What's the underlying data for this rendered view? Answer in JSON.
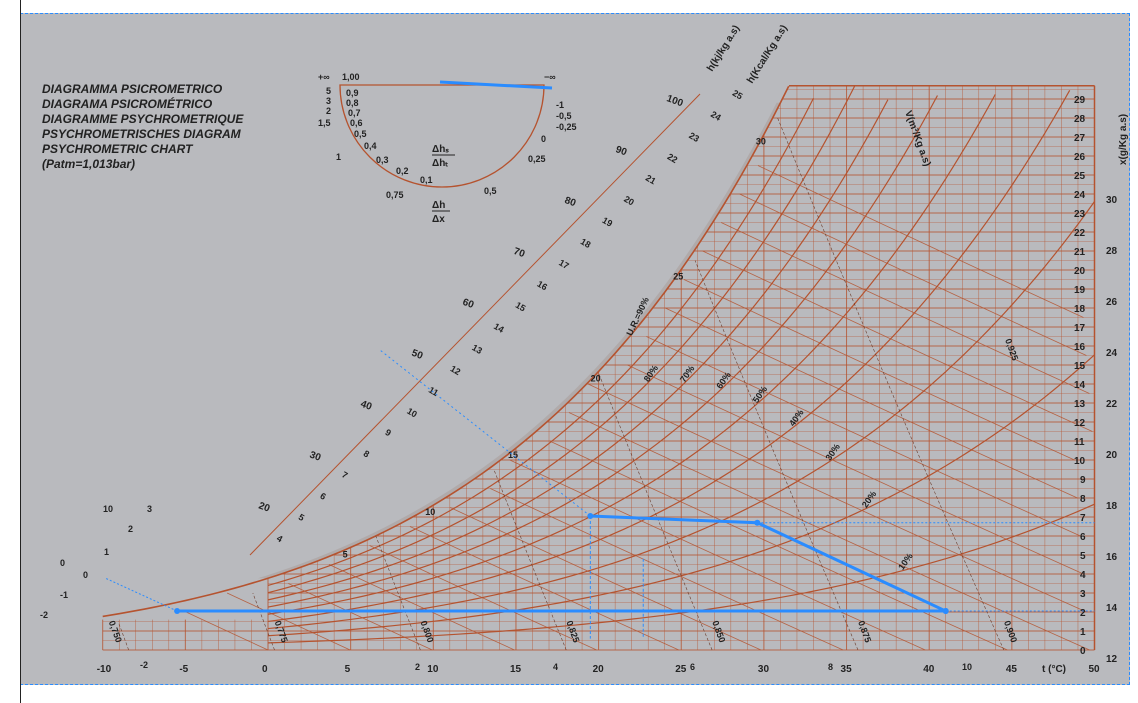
{
  "titles": [
    "DIAGRAMMA PSICROMETRICO",
    "DIAGRAMA PSICROMÉTRICO",
    "DIAGRAMME PSYCHROMETRIQUE",
    "PSYCHROMETRISCHES DIAGRAM",
    "PSYCHROMETRIC CHART"
  ],
  "pressure_note": "(Patm=1,013bar)",
  "colors": {
    "grid": "#b5532f",
    "background": "#b9babe",
    "overlay": "#2a8cff"
  },
  "protractor": {
    "top_labels": {
      "plus_inf": "+∞",
      "one": "1,00",
      "minus_inf": "−∞"
    },
    "left_labels": [
      "5",
      "3",
      "2",
      "1,5",
      "1"
    ],
    "inner_labels": [
      "0,9",
      "0,8",
      "0,7",
      "0,6",
      "0,5",
      "0,4",
      "0,3",
      "0,2",
      "0,1"
    ],
    "right_labels": [
      "-1",
      "-0,5",
      "-0,25",
      "0",
      "0,25",
      "0,5",
      "0,75"
    ],
    "ratio1_num": "Δhₛ",
    "ratio1_den": "Δhₜ",
    "ratio2_num": "Δh",
    "ratio2_den": "Δx"
  },
  "chart_data": {
    "type": "line",
    "title": "PSYCHROMETRIC CHART",
    "xlabel": "t (°C)",
    "ylabel": "x(g/Kg a.s)",
    "xlim": [
      -10,
      50
    ],
    "ylim": [
      0,
      29.7
    ],
    "x_ticks": [
      "-10",
      "-5",
      "0",
      "5",
      "10",
      "15",
      "20",
      "25",
      "30",
      "35",
      "40",
      "45",
      "50"
    ],
    "y_ticks": [
      "0",
      "1",
      "2",
      "3",
      "4",
      "5",
      "6",
      "7",
      "8",
      "9",
      "10",
      "11",
      "12",
      "13",
      "14",
      "15",
      "16",
      "17",
      "18",
      "19",
      "20",
      "21",
      "22",
      "23",
      "24",
      "25",
      "26",
      "27",
      "28",
      "29"
    ],
    "vapour_pressure_ticks": [
      "12",
      "14",
      "16",
      "18",
      "20",
      "22",
      "24",
      "26",
      "28",
      "30"
    ],
    "enthalpy_label_kj": "h(kj/kg a.s)",
    "enthalpy_ticks_kj": [
      "20",
      "30",
      "40",
      "50",
      "60",
      "70",
      "80",
      "90",
      "100"
    ],
    "enthalpy_label_kcal": "h(Kcal/Kg a.s)",
    "enthalpy_ticks_kcal": [
      "4",
      "5",
      "6",
      "7",
      "8",
      "9",
      "10",
      "11",
      "12",
      "13",
      "14",
      "15",
      "16",
      "17",
      "18",
      "19",
      "20",
      "21",
      "22",
      "23",
      "24",
      "25"
    ],
    "wet_bulb_ticks": [
      "5",
      "10",
      "15",
      "20",
      "25",
      "30"
    ],
    "volume_label": "V(m³/Kg a.s)",
    "volume_ticks": [
      "0,750",
      "0,775",
      "0,800",
      "0,825",
      "0,850",
      "0,875",
      "0,900",
      "0,925"
    ],
    "rh_label": "U.R.=90%",
    "rh_curves": [
      10,
      20,
      30,
      40,
      50,
      60,
      70,
      80,
      90
    ],
    "rh_tick_labels": [
      "80%",
      "70%",
      "60%",
      "50%",
      "40%",
      "30%",
      "20%",
      "10%"
    ],
    "left_scale_labels": [
      "10",
      "3",
      "2",
      "1",
      "0",
      "0",
      "-1",
      "-2",
      "-2"
    ],
    "bottom_extra_labels": [
      "2",
      "4",
      "6",
      "8",
      "10"
    ],
    "grid": true,
    "series": [
      {
        "values_t": [
          19.5,
          29.6,
          41.0,
          -5.5,
          41.0
        ],
        "values_x": [
          7.05,
          6.7,
          2.05,
          2.05,
          2.05
        ],
        "color": "#2a8cff"
      }
    ]
  }
}
